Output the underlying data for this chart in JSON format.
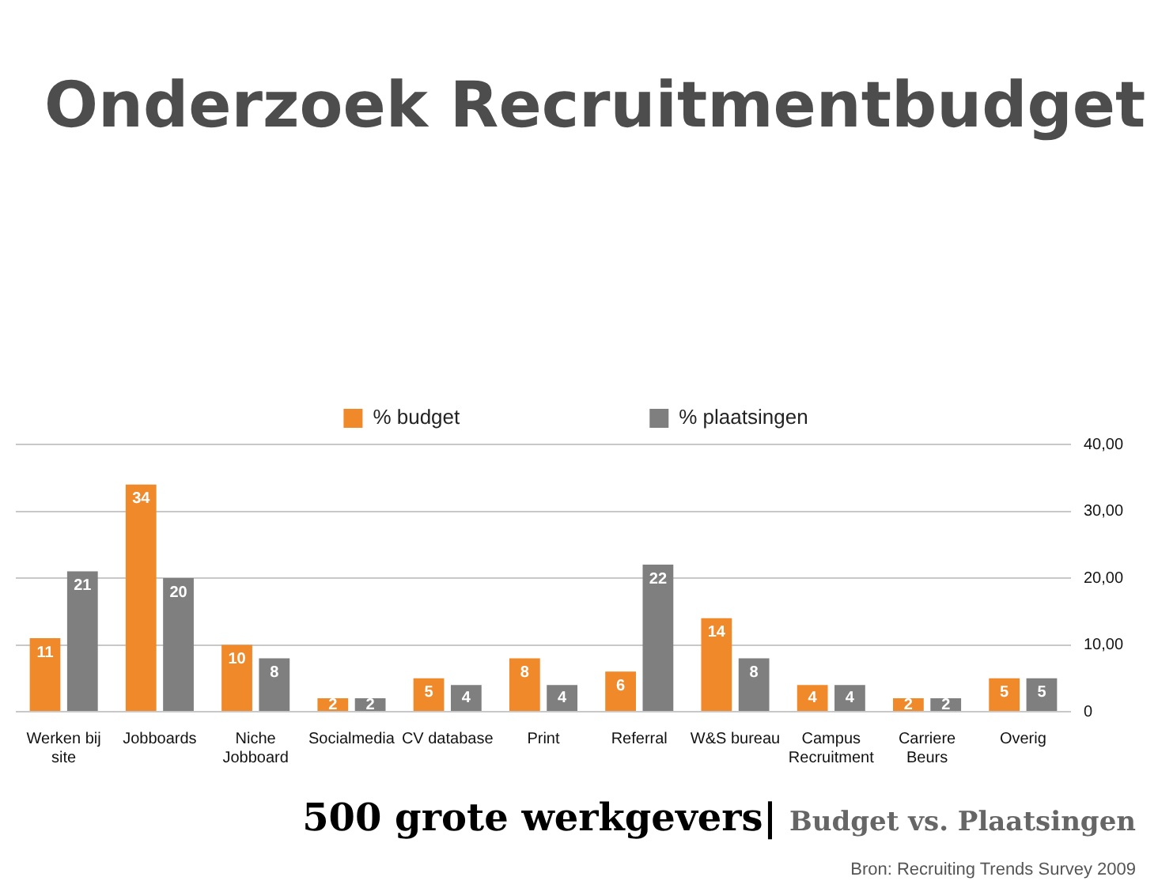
{
  "chart_data": {
    "type": "bar",
    "title": "Onderzoek Recruitmentbudget",
    "subtitle": "500 grote werkgevers|",
    "annotations": [
      "Budget vs. Plaatsingen",
      "Bron: Recruiting Trends Survey 2009"
    ],
    "categories": [
      "Werken bij site",
      "Jobboards",
      "Niche Jobboard",
      "Socialmedia",
      "CV database",
      "Print",
      "Referral",
      "W&S bureau",
      "Campus Recruitment",
      "Carriere Beurs",
      "Overig"
    ],
    "series": [
      {
        "name": "% budget",
        "color": "#f0892a",
        "values": [
          11,
          34,
          10,
          2,
          5,
          8,
          6,
          14,
          4,
          2,
          5
        ]
      },
      {
        "name": "% plaatsingen",
        "color": "#7f7f7f",
        "values": [
          21,
          20,
          8,
          2,
          4,
          4,
          22,
          8,
          4,
          2,
          5
        ]
      }
    ],
    "ylim": [
      0,
      40
    ],
    "yticks": [
      0,
      {
        "value": 10,
        "label": "10,00"
      },
      {
        "value": 20,
        "label": "20,00"
      },
      {
        "value": 30,
        "label": "30,00"
      },
      {
        "value": 40,
        "label": "40,00"
      }
    ],
    "grid": "y",
    "legend": "top",
    "data_labels": true
  }
}
